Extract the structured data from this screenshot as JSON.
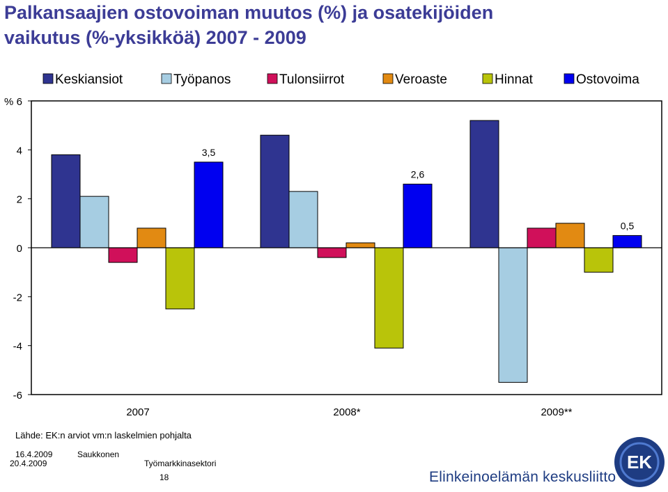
{
  "title": {
    "line1": "Palkansaajien ostovoiman muutos (%) ja osatekijöiden",
    "line2": "vaikutus (%-yksikköä) 2007 - 2009"
  },
  "chart_data": {
    "type": "bar",
    "ylabel": "%",
    "ylim": [
      -6,
      6
    ],
    "yticks": [
      6,
      4,
      2,
      0,
      -2,
      -4,
      -6
    ],
    "ytick_labels": [
      "6",
      "4",
      "2",
      "0",
      "-2",
      "-4",
      "-6"
    ],
    "categories": [
      "2007",
      "2008*",
      "2009**"
    ],
    "legend_position": "top",
    "grid": false,
    "series": [
      {
        "name": "Keskiansiot",
        "color": "#2f3490",
        "values": [
          3.8,
          4.6,
          5.2
        ]
      },
      {
        "name": "Työpanos",
        "color": "#a6cde2",
        "values": [
          2.1,
          2.3,
          -5.5
        ]
      },
      {
        "name": "Tulonsiirrot",
        "color": "#d0105a",
        "values": [
          -0.6,
          -0.4,
          0.8
        ]
      },
      {
        "name": "Veroaste",
        "color": "#e28a12",
        "values": [
          0.8,
          0.2,
          1.0
        ]
      },
      {
        "name": "Hinnat",
        "color": "#b9c40a",
        "values": [
          -2.5,
          -4.1,
          -1.0
        ]
      },
      {
        "name": "Ostovoima",
        "color": "#0000f0",
        "values": [
          3.5,
          2.6,
          0.5
        ]
      }
    ],
    "data_labels": [
      {
        "series": "Ostovoima",
        "category": "2007",
        "text": "3,5"
      },
      {
        "series": "Ostovoima",
        "category": "2008*",
        "text": "2,6"
      },
      {
        "series": "Ostovoima",
        "category": "2009**",
        "text": "0,5"
      }
    ]
  },
  "source": "Lähde: EK:n arviot vm:n laskelmien pohjalta",
  "footer": {
    "date1": "16.4.2009",
    "date2": "20.4.2009",
    "author": "Saukkonen",
    "department": "Työmarkkinasektori",
    "page": "18",
    "organization": "Elinkeinoelämän keskusliitto",
    "logo_text": "EK",
    "logo_colors": {
      "ring": "#1e3c82",
      "accent": "#ffffff"
    }
  }
}
